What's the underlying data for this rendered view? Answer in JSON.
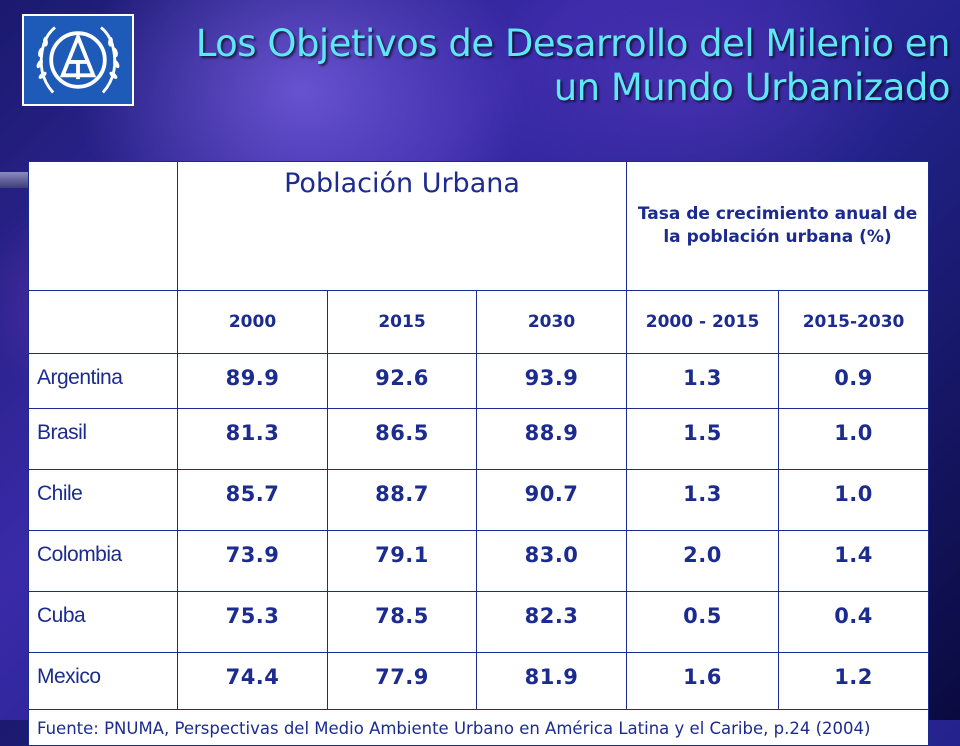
{
  "title_line1": "Los Objetivos de Desarrollo del Milenio en",
  "title_line2": "un Mundo Urbanizado",
  "logo": "un-habitat-emblem",
  "colors": {
    "title": "#5ee8f5",
    "table_text": "#1b2b8f",
    "logo_bg": "#1e5bb8"
  },
  "header": {
    "poblacion": "Población Urbana",
    "tasa": "Tasa de crecimiento anual de la población urbana (%)",
    "years": [
      "2000",
      "2015",
      "2030",
      "2000 - 2015",
      "2015-2030"
    ]
  },
  "rows": [
    {
      "country": "Argentina",
      "v": [
        "89.9",
        "92.6",
        "93.9",
        "1.3",
        "0.9"
      ]
    },
    {
      "country": "Brasil",
      "v": [
        "81.3",
        "86.5",
        "88.9",
        "1.5",
        "1.0"
      ]
    },
    {
      "country": "Chile",
      "v": [
        "85.7",
        "88.7",
        "90.7",
        "1.3",
        "1.0"
      ]
    },
    {
      "country": "Colombia",
      "v": [
        "73.9",
        "79.1",
        "83.0",
        "2.0",
        "1.4"
      ]
    },
    {
      "country": "Cuba",
      "v": [
        "75.3",
        "78.5",
        "82.3",
        "0.5",
        "0.4"
      ]
    },
    {
      "country": "Mexico",
      "v": [
        "74.4",
        "77.9",
        "81.9",
        "1.6",
        "1.2"
      ]
    }
  ],
  "source": "Fuente: PNUMA, Perspectivas del Medio Ambiente Urbano en América Latina y el Caribe, p.24 (2004)"
}
